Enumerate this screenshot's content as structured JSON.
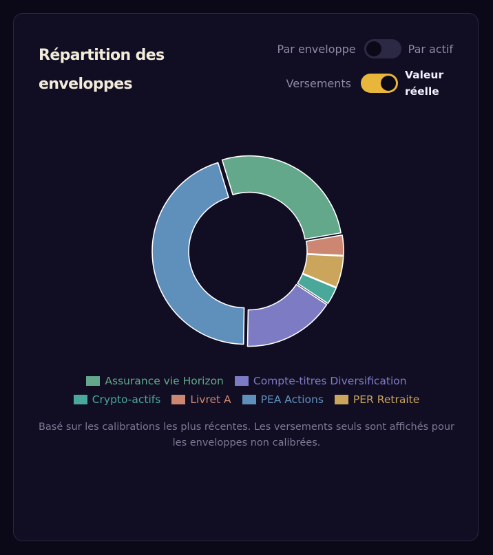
{
  "card": {
    "title": "Répartition des enveloppes"
  },
  "toggles": {
    "view": {
      "left_label": "Par enveloppe",
      "right_label": "Par actif",
      "state": "off"
    },
    "value_mode": {
      "left_label": "Versements",
      "right_label": "Valeur réelle",
      "state": "on"
    }
  },
  "colors": {
    "background": "#0b0918",
    "card": "#110e24",
    "accent_toggle": "#e9b63c"
  },
  "chart_data": {
    "type": "pie",
    "variant": "donut",
    "legend_position": "bottom",
    "categories": [
      "Assurance vie Horizon",
      "Compte-titres Diversification",
      "Crypto-actifs",
      "Livret A",
      "PEA Actions",
      "PER Retraite"
    ],
    "values": [
      27,
      16,
      3,
      3.5,
      45,
      5.5
    ],
    "colors": [
      "#63a88b",
      "#7d7bc4",
      "#4aa89a",
      "#cc8672",
      "#5f8fbb",
      "#cca55c"
    ],
    "legend_rows": [
      [
        "Assurance vie Horizon",
        "Compte-titres Diversification"
      ],
      [
        "Crypto-actifs",
        "Livret A",
        "PEA Actions",
        "PER Retraite"
      ]
    ]
  },
  "footnote": "Basé sur les calibrations les plus récentes. Les versements seuls sont affichés pour les enveloppes non calibrées."
}
